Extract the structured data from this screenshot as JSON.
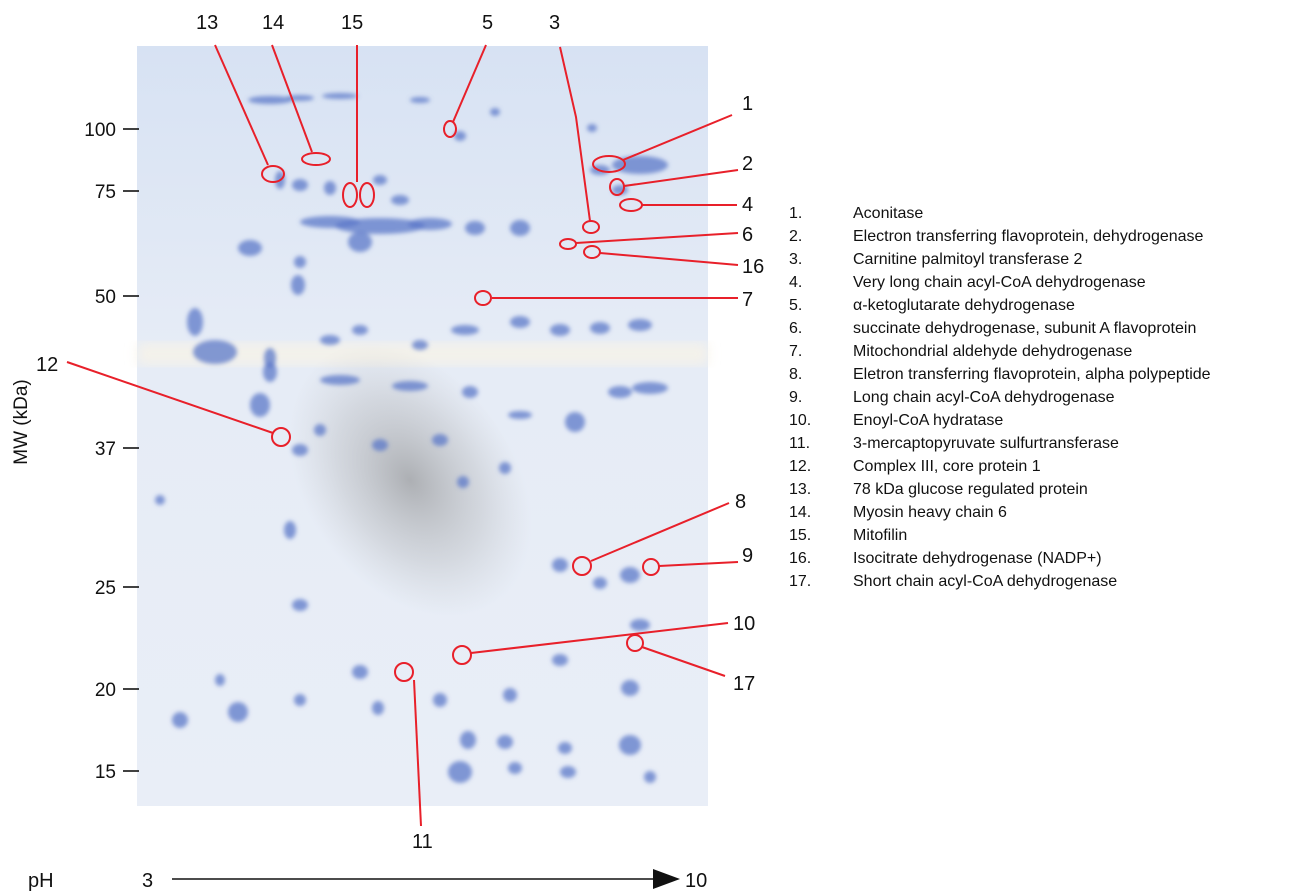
{
  "y_axis": {
    "title": "MW (kDa)",
    "ticks": [
      "100",
      "75",
      "50",
      "37",
      "25",
      "20",
      "15"
    ]
  },
  "ph_axis": {
    "label": "pH",
    "start": "3",
    "end": "10"
  },
  "callouts": [
    "1",
    "2",
    "3",
    "4",
    "5",
    "6",
    "7",
    "8",
    "9",
    "10",
    "11",
    "12",
    "13",
    "14",
    "15",
    "16",
    "17"
  ],
  "legend": [
    {
      "num": "1.",
      "name": "Aconitase"
    },
    {
      "num": "2.",
      "name": "Electron transferring flavoprotein, dehydrogenase"
    },
    {
      "num": "3.",
      "name": "Carnitine palmitoyl transferase 2"
    },
    {
      "num": "4.",
      "name": "Very long chain acyl-CoA dehydrogenase"
    },
    {
      "num": "5.",
      "name": "α-ketoglutarate dehydrogenase"
    },
    {
      "num": "6.",
      "name": "succinate dehydrogenase, subunit A flavoprotein"
    },
    {
      "num": "7.",
      "name": "Mitochondrial aldehyde dehydrogenase"
    },
    {
      "num": "8.",
      "name": "Eletron transferring flavoprotein, alpha polypeptide"
    },
    {
      "num": "9.",
      "name": "Long chain acyl-CoA dehydrogenase"
    },
    {
      "num": "10.",
      "name": "Enoyl-CoA hydratase"
    },
    {
      "num": "11.",
      "name": "3-mercaptopyruvate sulfurtransferase"
    },
    {
      "num": "12.",
      "name": "Complex III, core protein 1"
    },
    {
      "num": "13.",
      "name": "78 kDa glucose regulated protein"
    },
    {
      "num": "14.",
      "name": "Myosin heavy chain 6"
    },
    {
      "num": "15.",
      "name": "Mitofilin"
    },
    {
      "num": "16.",
      "name": "Isocitrate dehydrogenase (NADP+)"
    },
    {
      "num": "17.",
      "name": "Short chain acyl-CoA dehydrogenase"
    }
  ],
  "colors": {
    "gel_background": "#dde6f4",
    "spot": "#5c78c8",
    "callout": "#e8202a",
    "smear": "#8a8a8a"
  }
}
